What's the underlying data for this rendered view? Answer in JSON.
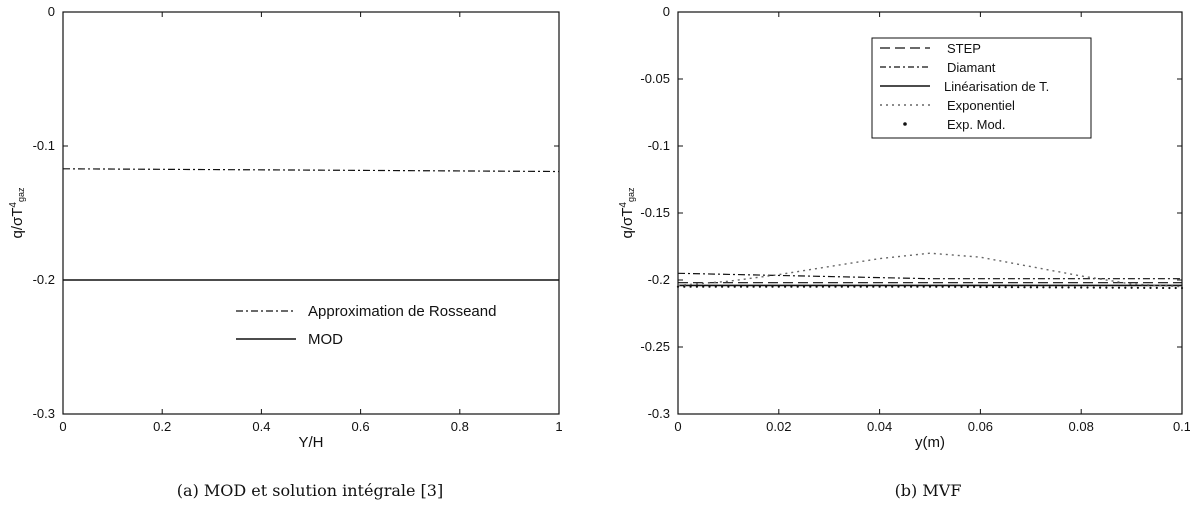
{
  "chart_data": [
    {
      "type": "line",
      "caption": "(a) MOD et solution intégrale [3]",
      "xlabel": "Y/H",
      "ylabel": "q/σT⁴gaz",
      "xlim": [
        0,
        1
      ],
      "ylim": [
        -0.3,
        0
      ],
      "xticks": [
        "0",
        "0.2",
        "0.4",
        "0.6",
        "0.8",
        "1"
      ],
      "yticks": [
        "0",
        "-0.1",
        "-0.2",
        "-0.3"
      ],
      "grid": false,
      "legend_position": "lower-right",
      "series": [
        {
          "name": "Approximation de Rosseand",
          "style": "dashdot",
          "x": [
            0,
            0.5,
            1
          ],
          "y": [
            -0.117,
            -0.118,
            -0.119
          ]
        },
        {
          "name": "MOD",
          "style": "solid",
          "x": [
            0,
            0.5,
            1
          ],
          "y": [
            -0.2,
            -0.2,
            -0.2
          ]
        }
      ]
    },
    {
      "type": "line",
      "caption": "(b) MVF",
      "xlabel": "y(m)",
      "ylabel": "q/σT⁴gaz",
      "xlim": [
        0,
        0.1
      ],
      "ylim": [
        -0.3,
        0
      ],
      "xticks": [
        "0",
        "0.02",
        "0.04",
        "0.06",
        "0.08",
        "0.1"
      ],
      "yticks": [
        "0",
        "-0.05",
        "-0.1",
        "-0.15",
        "-0.2",
        "-0.25",
        "-0.3"
      ],
      "grid": false,
      "legend_position": "top-right",
      "series": [
        {
          "name": "STEP",
          "style": "dashed",
          "x": [
            0,
            0.05,
            0.1
          ],
          "y": [
            -0.202,
            -0.202,
            -0.202
          ]
        },
        {
          "name": "Diamant",
          "style": "dashdot",
          "x": [
            0,
            0.05,
            0.1
          ],
          "y": [
            -0.195,
            -0.199,
            -0.199
          ]
        },
        {
          "name": "Linéarisation de T.",
          "style": "solid",
          "x": [
            0,
            0.05,
            0.1
          ],
          "y": [
            -0.204,
            -0.204,
            -0.204
          ]
        },
        {
          "name": "Exponentiel",
          "style": "dotted",
          "x": [
            0,
            0.01,
            0.02,
            0.03,
            0.04,
            0.05,
            0.06,
            0.07,
            0.08,
            0.09,
            0.1
          ],
          "y": [
            -0.204,
            -0.201,
            -0.196,
            -0.19,
            -0.184,
            -0.18,
            -0.183,
            -0.19,
            -0.197,
            -0.203,
            -0.205
          ]
        },
        {
          "name": "Exp. Mod.",
          "style": "dots",
          "x": [
            0,
            0.05,
            0.1
          ],
          "y": [
            -0.205,
            -0.205,
            -0.206
          ]
        }
      ]
    }
  ]
}
